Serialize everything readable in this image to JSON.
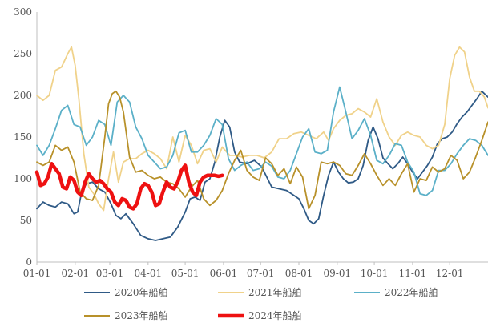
{
  "chart_data": {
    "type": "line",
    "ylim": [
      0,
      300
    ],
    "yticks": [
      0,
      50,
      100,
      150,
      200,
      250,
      300
    ],
    "xlim": [
      0,
      365
    ],
    "xticks": [
      {
        "label": "01-01",
        "day": 0
      },
      {
        "label": "02-01",
        "day": 31
      },
      {
        "label": "03-01",
        "day": 59
      },
      {
        "label": "04-01",
        "day": 90
      },
      {
        "label": "05-01",
        "day": 120
      },
      {
        "label": "06-01",
        "day": 151
      },
      {
        "label": "07-01",
        "day": 181
      },
      {
        "label": "08-01",
        "day": 212
      },
      {
        "label": "09-01",
        "day": 243
      },
      {
        "label": "10-01",
        "day": 273
      },
      {
        "label": "11-01",
        "day": 304
      },
      {
        "label": "12-01",
        "day": 334
      }
    ],
    "grid": false,
    "legend_position": "bottom",
    "series": [
      {
        "name": "2020年船舶",
        "color": "#2f5a86",
        "x": [
          0,
          5,
          10,
          15,
          20,
          25,
          30,
          33,
          36,
          40,
          45,
          50,
          55,
          60,
          64,
          68,
          72,
          78,
          84,
          90,
          96,
          102,
          108,
          114,
          120,
          124,
          128,
          132,
          136,
          140,
          144,
          148,
          152,
          156,
          160,
          164,
          170,
          176,
          182,
          190,
          196,
          202,
          208,
          212,
          216,
          220,
          224,
          228,
          232,
          236,
          240,
          244,
          248,
          252,
          256,
          260,
          264,
          268,
          272,
          276,
          280,
          284,
          288,
          292,
          296,
          300,
          304,
          308,
          312,
          316,
          320,
          324,
          328,
          332,
          336,
          340,
          344,
          348,
          352,
          356,
          360,
          365
        ],
        "y": [
          64,
          72,
          68,
          66,
          72,
          70,
          58,
          60,
          82,
          94,
          96,
          88,
          84,
          70,
          56,
          52,
          58,
          46,
          32,
          28,
          26,
          28,
          30,
          42,
          60,
          76,
          78,
          74,
          96,
          100,
          120,
          150,
          170,
          162,
          132,
          120,
          118,
          122,
          114,
          90,
          88,
          86,
          80,
          76,
          64,
          50,
          46,
          52,
          80,
          104,
          120,
          108,
          100,
          95,
          96,
          100,
          116,
          146,
          162,
          148,
          125,
          118,
          112,
          118,
          126,
          118,
          108,
          100,
          108,
          116,
          126,
          142,
          148,
          150,
          156,
          166,
          174,
          180,
          188,
          196,
          205,
          198
        ]
      },
      {
        "name": "2021年船舶",
        "color": "#f0d28a",
        "x": [
          0,
          5,
          10,
          15,
          20,
          25,
          28,
          31,
          34,
          38,
          42,
          46,
          50,
          54,
          58,
          62,
          66,
          70,
          75,
          80,
          85,
          90,
          95,
          100,
          105,
          110,
          115,
          120,
          125,
          130,
          135,
          140,
          145,
          150,
          156,
          160,
          166,
          172,
          178,
          184,
          190,
          196,
          202,
          208,
          214,
          220,
          226,
          232,
          236,
          240,
          245,
          250,
          255,
          260,
          265,
          270,
          275,
          280,
          285,
          290,
          295,
          300,
          305,
          310,
          315,
          320,
          325,
          330,
          334,
          338,
          342,
          346,
          350,
          354,
          358,
          362,
          365
        ],
        "y": [
          200,
          194,
          200,
          230,
          234,
          250,
          258,
          236,
          196,
          130,
          90,
          82,
          70,
          62,
          100,
          132,
          96,
          120,
          124,
          124,
          130,
          134,
          130,
          124,
          112,
          150,
          120,
          152,
          140,
          118,
          134,
          136,
          120,
          138,
          128,
          128,
          126,
          128,
          128,
          125,
          132,
          148,
          148,
          154,
          156,
          152,
          148,
          156,
          146,
          160,
          170,
          176,
          178,
          184,
          180,
          174,
          196,
          168,
          150,
          140,
          152,
          156,
          152,
          150,
          140,
          136,
          140,
          165,
          220,
          248,
          258,
          252,
          222,
          205,
          205,
          198,
          185
        ]
      },
      {
        "name": "2022年船舶",
        "color": "#5bb0c8",
        "x": [
          0,
          5,
          10,
          15,
          20,
          25,
          30,
          35,
          40,
          45,
          50,
          55,
          60,
          65,
          70,
          75,
          80,
          85,
          90,
          95,
          100,
          105,
          110,
          115,
          120,
          125,
          130,
          135,
          140,
          145,
          150,
          155,
          160,
          165,
          170,
          175,
          180,
          185,
          190,
          195,
          200,
          205,
          210,
          215,
          220,
          225,
          230,
          235,
          240,
          245,
          250,
          255,
          260,
          265,
          270,
          275,
          280,
          285,
          290,
          295,
          300,
          305,
          310,
          315,
          320,
          325,
          330,
          335,
          340,
          345,
          350,
          355,
          360,
          365
        ],
        "y": [
          140,
          128,
          140,
          160,
          182,
          188,
          165,
          162,
          140,
          150,
          170,
          165,
          140,
          192,
          200,
          192,
          162,
          148,
          128,
          120,
          112,
          114,
          128,
          155,
          158,
          132,
          132,
          140,
          152,
          172,
          165,
          124,
          110,
          116,
          120,
          110,
          112,
          120,
          115,
          102,
          100,
          110,
          130,
          150,
          160,
          132,
          130,
          134,
          180,
          210,
          180,
          148,
          158,
          172,
          152,
          122,
          118,
          128,
          142,
          140,
          120,
          108,
          82,
          80,
          86,
          110,
          110,
          118,
          130,
          140,
          148,
          146,
          140,
          128
        ]
      },
      {
        "name": "2023年船舶",
        "color": "#b8912a",
        "x": [
          0,
          5,
          10,
          15,
          20,
          25,
          30,
          35,
          40,
          45,
          50,
          55,
          58,
          61,
          64,
          67,
          70,
          75,
          80,
          85,
          90,
          95,
          100,
          105,
          110,
          115,
          120,
          125,
          130,
          135,
          140,
          145,
          150,
          155,
          160,
          165,
          170,
          175,
          180,
          185,
          190,
          195,
          200,
          205,
          210,
          215,
          220,
          225,
          230,
          235,
          240,
          245,
          250,
          255,
          260,
          265,
          270,
          275,
          280,
          285,
          290,
          295,
          300,
          305,
          310,
          315,
          320,
          325,
          330,
          335,
          340,
          345,
          350,
          355,
          360,
          365
        ],
        "y": [
          120,
          116,
          120,
          140,
          134,
          138,
          120,
          84,
          76,
          74,
          92,
          150,
          190,
          202,
          205,
          198,
          180,
          126,
          108,
          110,
          104,
          100,
          102,
          96,
          94,
          88,
          78,
          90,
          98,
          76,
          68,
          74,
          86,
          106,
          122,
          134,
          110,
          102,
          98,
          125,
          118,
          104,
          112,
          94,
          114,
          102,
          64,
          80,
          120,
          118,
          120,
          116,
          106,
          104,
          116,
          130,
          118,
          104,
          92,
          100,
          92,
          106,
          118,
          84,
          100,
          98,
          114,
          108,
          112,
          128,
          122,
          100,
          108,
          126,
          146,
          168
        ]
      },
      {
        "name": "2024年船舶",
        "color": "#ee1111",
        "x": [
          0,
          3,
          6,
          9,
          12,
          15,
          18,
          21,
          24,
          27,
          30,
          33,
          36,
          39,
          42,
          45,
          48,
          51,
          54,
          57,
          60,
          63,
          66,
          69,
          72,
          75,
          78,
          81,
          84,
          87,
          90,
          93,
          96,
          99,
          102,
          105,
          108,
          111,
          114,
          117,
          120,
          123,
          126,
          129,
          132,
          135,
          138,
          141,
          144,
          147,
          150
        ],
        "y": [
          108,
          92,
          94,
          102,
          118,
          112,
          106,
          90,
          88,
          102,
          98,
          84,
          80,
          96,
          106,
          100,
          96,
          98,
          94,
          88,
          84,
          72,
          68,
          76,
          74,
          66,
          64,
          70,
          88,
          94,
          92,
          84,
          68,
          70,
          84,
          96,
          90,
          88,
          96,
          110,
          116,
          96,
          84,
          80,
          96,
          102,
          104,
          104,
          104,
          103,
          104
        ]
      }
    ]
  }
}
